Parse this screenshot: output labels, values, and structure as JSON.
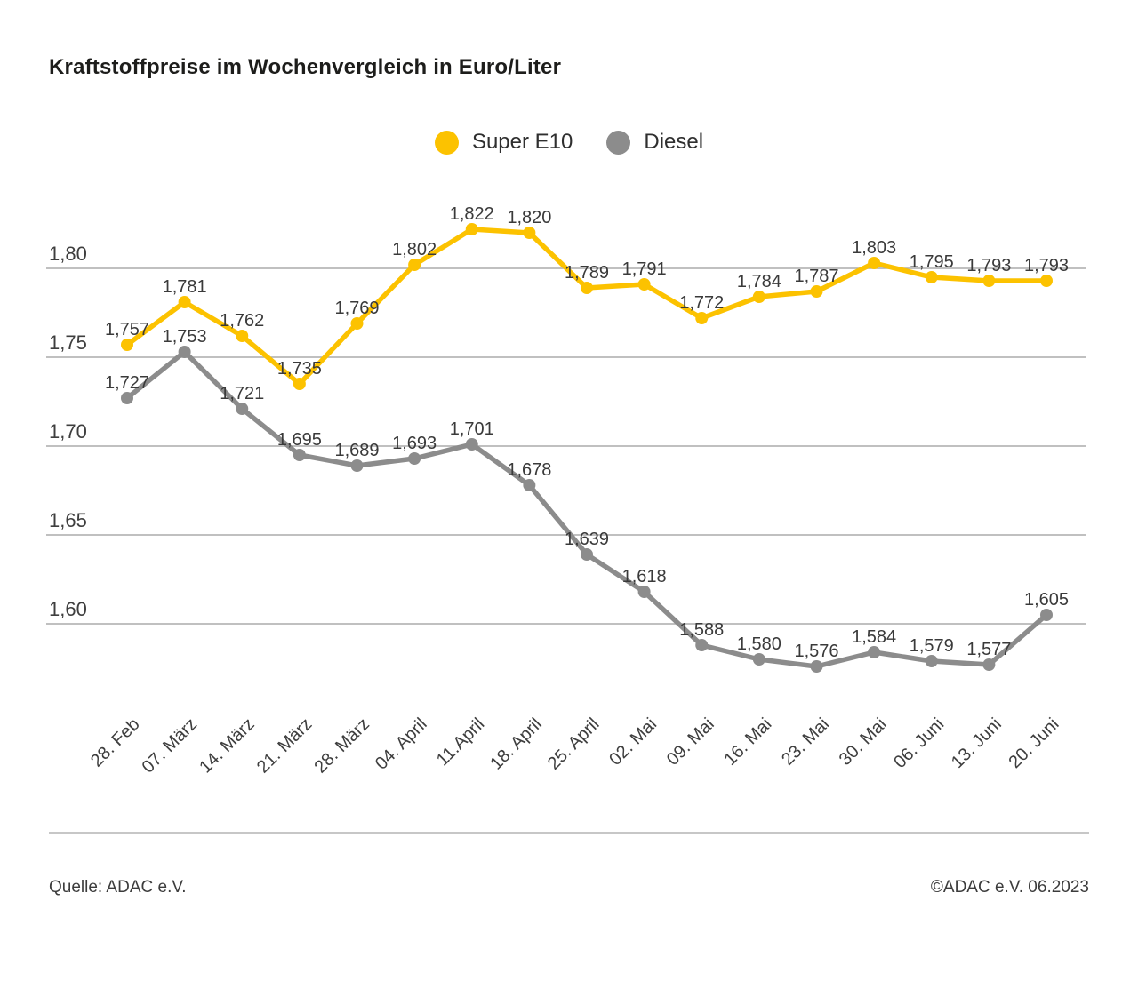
{
  "title": "Kraftstoffpreise im Wochenvergleich in Euro/Liter",
  "footer": {
    "source": "Quelle: ADAC e.V.",
    "copyright": "©ADAC e.V. 06.2023"
  },
  "colors": {
    "super_e10": "#fcc200",
    "diesel": "#8c8c8c",
    "gridline": "#ababab",
    "tick_text": "#3e3e3e",
    "data_label_text": "#3a3a3a"
  },
  "chart_data": {
    "type": "line",
    "title": "Kraftstoffpreise im Wochenvergleich in Euro/Liter",
    "categories": [
      "28. Feb",
      "07. März",
      "14. März",
      "21. März",
      "28. März",
      "04. April",
      "11.April",
      "18. April",
      "25. April",
      "02. Mai",
      "09. Mai",
      "16. Mai",
      "23. Mai",
      "30. Mai",
      "06. Juni",
      "13. Juni",
      "20. Juni"
    ],
    "series": [
      {
        "name": "Super E10",
        "color": "#fcc200",
        "values": [
          1.757,
          1.781,
          1.762,
          1.735,
          1.769,
          1.802,
          1.822,
          1.82,
          1.789,
          1.791,
          1.772,
          1.784,
          1.787,
          1.803,
          1.795,
          1.793,
          1.793
        ],
        "labels": [
          "1,757",
          "1,781",
          "1,762",
          "1,735",
          "1,769",
          "1,802",
          "1,822",
          "1,820",
          "1,789",
          "1,791",
          "1,772",
          "1,784",
          "1,787",
          "1,803",
          "1,795",
          "1,793",
          "1,793"
        ]
      },
      {
        "name": "Diesel",
        "color": "#8c8c8c",
        "values": [
          1.727,
          1.753,
          1.721,
          1.695,
          1.689,
          1.693,
          1.701,
          1.678,
          1.639,
          1.618,
          1.588,
          1.58,
          1.576,
          1.584,
          1.579,
          1.577,
          1.605
        ],
        "labels": [
          "1,727",
          "1,753",
          "1,721",
          "1,695",
          "1,689",
          "1,693",
          "1,701",
          "1,678",
          "1,639",
          "1,618",
          "1,588",
          "1,580",
          "1,576",
          "1,584",
          "1,579",
          "1,577",
          "1,605"
        ]
      }
    ],
    "yticks": [
      {
        "value": 1.8,
        "label": "1,80"
      },
      {
        "value": 1.75,
        "label": "1,75"
      },
      {
        "value": 1.7,
        "label": "1,70"
      },
      {
        "value": 1.65,
        "label": "1,65"
      },
      {
        "value": 1.6,
        "label": "1,60"
      }
    ],
    "ylim": [
      1.555,
      1.851
    ],
    "grid": true,
    "legend_position": "top-center",
    "xlabel": "",
    "ylabel": "Euro/Liter",
    "decimal_separator": ","
  }
}
